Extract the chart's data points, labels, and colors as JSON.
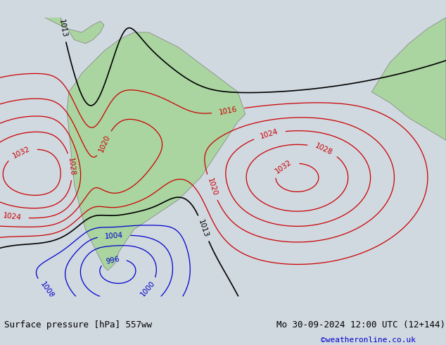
{
  "title_left": "Surface pressure [hPa] 557ww",
  "title_right": "Mo 30-09-2024 12:00 UTC (12+144)",
  "copyright": "©weatheronline.co.uk",
  "bg_color": "#d0d8e0",
  "land_color": "#aad4a0",
  "fig_width": 6.34,
  "fig_height": 4.9,
  "dpi": 100,
  "bottom_bar_color": "#c8c8c8",
  "isobar_blue_color": "#0000cc",
  "isobar_red_color": "#cc0000",
  "isobar_black_color": "#000000",
  "footer_text_color": "#000000",
  "copyright_color": "#0000cc",
  "label_fontsize": 7.5,
  "footer_fontsize": 9
}
